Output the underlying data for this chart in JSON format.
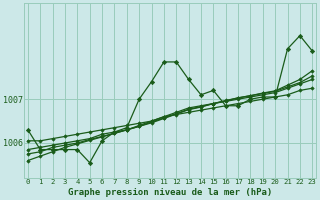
{
  "bg_color": "#cce8e8",
  "grid_color": "#99ccbb",
  "line_color": "#1a5c1a",
  "marker_color": "#1a5c1a",
  "title": "Graphe pression niveau de la mer (hPa)",
  "x_ticks": [
    0,
    1,
    2,
    3,
    4,
    5,
    6,
    7,
    8,
    9,
    10,
    11,
    12,
    13,
    14,
    15,
    16,
    17,
    18,
    19,
    20,
    21,
    22,
    23
  ],
  "ylim": [
    1005.2,
    1009.2
  ],
  "ytick_vals": [
    1006,
    1007
  ],
  "series_jagged": [
    1006.3,
    1005.85,
    1005.85,
    1005.85,
    1005.85,
    1005.55,
    1006.05,
    1006.25,
    1006.35,
    1007.0,
    1007.4,
    1007.85,
    1007.85,
    1007.45,
    1007.1,
    1007.2,
    1006.85,
    1006.85,
    1007.0,
    1007.05,
    1007.05,
    1008.15,
    1008.45,
    1008.1
  ],
  "series_linear": [
    [
      1006.05,
      1006.05,
      1006.1,
      1006.15,
      1006.2,
      1006.25,
      1006.3,
      1006.35,
      1006.4,
      1006.45,
      1006.5,
      1006.6,
      1006.65,
      1006.7,
      1006.75,
      1006.8,
      1006.85,
      1006.9,
      1006.95,
      1007.0,
      1007.05,
      1007.1,
      1007.2,
      1007.25
    ],
    [
      1005.85,
      1005.9,
      1005.95,
      1006.0,
      1006.05,
      1006.1,
      1006.2,
      1006.25,
      1006.3,
      1006.4,
      1006.5,
      1006.6,
      1006.7,
      1006.8,
      1006.85,
      1006.9,
      1006.95,
      1007.0,
      1007.05,
      1007.1,
      1007.15,
      1007.25,
      1007.35,
      1007.45
    ],
    [
      1005.75,
      1005.8,
      1005.9,
      1005.95,
      1006.0,
      1006.08,
      1006.15,
      1006.22,
      1006.3,
      1006.38,
      1006.48,
      1006.57,
      1006.67,
      1006.77,
      1006.83,
      1006.9,
      1006.97,
      1007.03,
      1007.08,
      1007.13,
      1007.18,
      1007.28,
      1007.38,
      1007.53
    ],
    [
      1005.6,
      1005.7,
      1005.8,
      1005.9,
      1005.98,
      1006.06,
      1006.14,
      1006.22,
      1006.3,
      1006.38,
      1006.46,
      1006.56,
      1006.66,
      1006.76,
      1006.82,
      1006.9,
      1006.96,
      1007.03,
      1007.08,
      1007.14,
      1007.19,
      1007.32,
      1007.45,
      1007.65
    ]
  ]
}
